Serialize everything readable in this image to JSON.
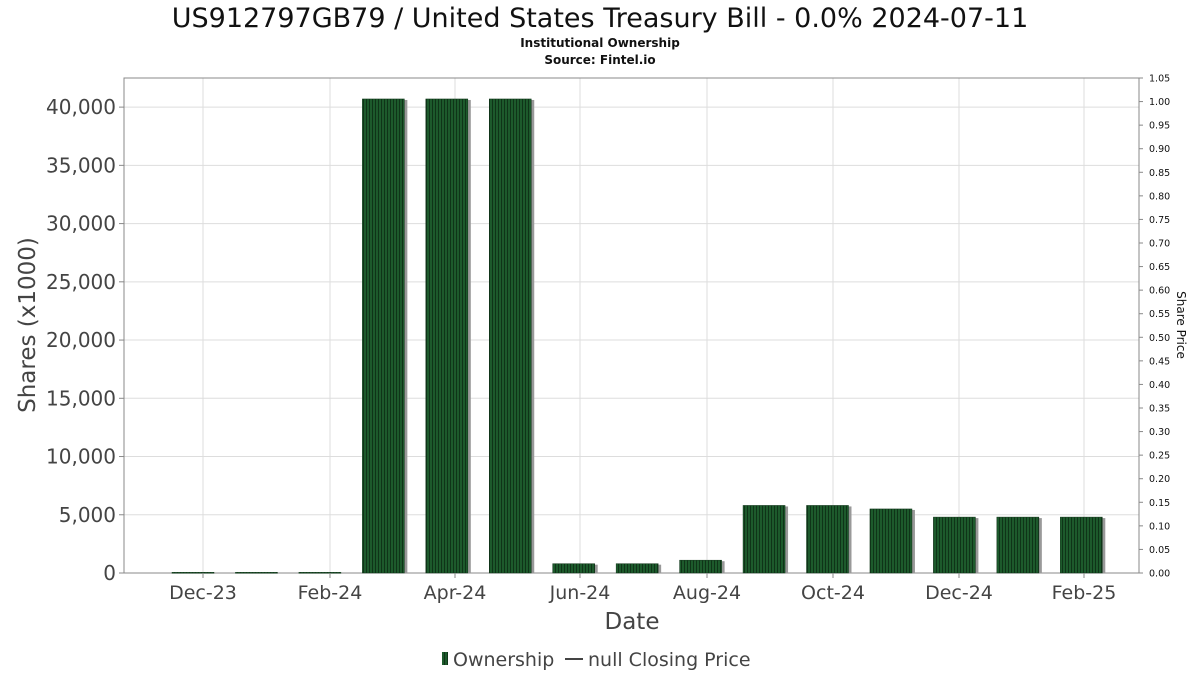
{
  "chart_data": {
    "type": "bar",
    "title": "US912797GB79 / United States Treasury Bill - 0.0% 2024-07-11",
    "subtitles": [
      "Institutional Ownership",
      "Source: Fintel.io"
    ],
    "xlabel": "Date",
    "ylabel": "Shares (x1000)",
    "y2label": "Share Price",
    "ylim": [
      0,
      42500
    ],
    "y2lim": [
      0,
      1.05
    ],
    "grid": true,
    "legend_position": "bottom",
    "x_tick_labels": [
      "Dec-23",
      "Feb-24",
      "Apr-24",
      "Jun-24",
      "Aug-24",
      "Oct-24",
      "Dec-24",
      "Feb-25"
    ],
    "y_tick_labels": [
      "0",
      "5,000",
      "10,000",
      "15,000",
      "20,000",
      "25,000",
      "30,000",
      "35,000",
      "40,000"
    ],
    "y2_tick_labels": [
      "0.00",
      "0.05",
      "0.10",
      "0.15",
      "0.20",
      "0.25",
      "0.30",
      "0.35",
      "0.40",
      "0.45",
      "0.50",
      "0.55",
      "0.60",
      "0.65",
      "0.70",
      "0.75",
      "0.80",
      "0.85",
      "0.90",
      "0.95",
      "1.00",
      "1.05"
    ],
    "series": [
      {
        "name": "Ownership",
        "color": "#1a4a24",
        "values": [
          60,
          60,
          60,
          40700,
          40700,
          40700,
          800,
          800,
          1100,
          5800,
          5800,
          5500,
          4800,
          4800,
          4800
        ]
      },
      {
        "name": "null Closing Price",
        "color": "#333333",
        "values": []
      }
    ]
  }
}
